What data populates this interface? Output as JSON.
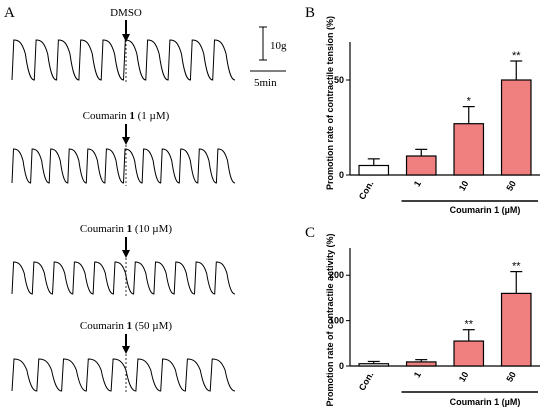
{
  "panels": {
    "a": "A",
    "b": "B",
    "c": "C"
  },
  "colors": {
    "bar_treated": "#f08080",
    "bar_control": "#ffffff",
    "stroke": "#000000"
  },
  "traces": {
    "scale_bar": {
      "amplitude_label": "10g",
      "time_label": "5min"
    },
    "items": [
      {
        "label_plain": "DMSO",
        "label_prefix": "",
        "label_bold": "",
        "label_suffix": ""
      },
      {
        "label_plain": "",
        "label_prefix": "Coumarin ",
        "label_bold": "1",
        "label_suffix": " (1 µM)"
      },
      {
        "label_plain": "",
        "label_prefix": "Coumarin ",
        "label_bold": "1",
        "label_suffix": " (10 µM)"
      },
      {
        "label_plain": "",
        "label_prefix": "Coumarin ",
        "label_bold": "1",
        "label_suffix": " (50 µM)"
      }
    ]
  },
  "chart_data": [
    {
      "type": "bar",
      "ylabel": "Promotion rate of contractile tension (%)",
      "xlabel": "Coumarin 1 (µM)",
      "categories": [
        "Con.",
        "1",
        "10",
        "50"
      ],
      "values": [
        5,
        10,
        27,
        50
      ],
      "errors": [
        3.5,
        3.5,
        9,
        10
      ],
      "significance": [
        "",
        "",
        "*",
        "**"
      ],
      "ylim": [
        0,
        70
      ],
      "yticks": [
        0,
        50
      ],
      "grid": false,
      "legend": "none"
    },
    {
      "type": "bar",
      "ylabel": "Promotion rate of contractile activity (%)",
      "xlabel": "Coumarin 1 (µM)",
      "categories": [
        "Con.",
        "1",
        "10",
        "50"
      ],
      "values": [
        5,
        9,
        55,
        160
      ],
      "errors": [
        5,
        5,
        25,
        48
      ],
      "significance": [
        "",
        "",
        "**",
        "**"
      ],
      "ylim": [
        0,
        260
      ],
      "yticks": [
        0,
        100,
        200
      ],
      "grid": false,
      "legend": "none"
    }
  ]
}
